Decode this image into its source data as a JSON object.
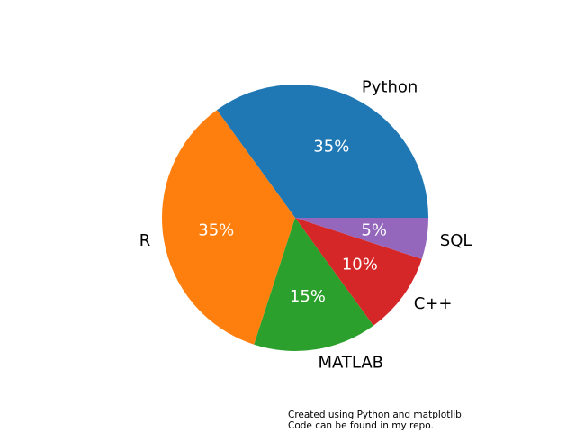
{
  "chart_data": {
    "type": "pie",
    "title": "",
    "categories": [
      "Python",
      "R",
      "MATLAB",
      "C++",
      "SQL"
    ],
    "values": [
      35,
      35,
      15,
      10,
      5
    ],
    "percent_labels": [
      "35%",
      "35%",
      "15%",
      "10%",
      "5%"
    ],
    "colors": [
      "#1f77b4",
      "#ff7f0e",
      "#2ca02c",
      "#d62728",
      "#9467bd"
    ],
    "start_angle_deg": 0,
    "direction": "counterclockwise",
    "legend": "none"
  },
  "footnote": {
    "line1": "Created using Python and matplotlib.",
    "line2": "Code can be found in my repo."
  }
}
